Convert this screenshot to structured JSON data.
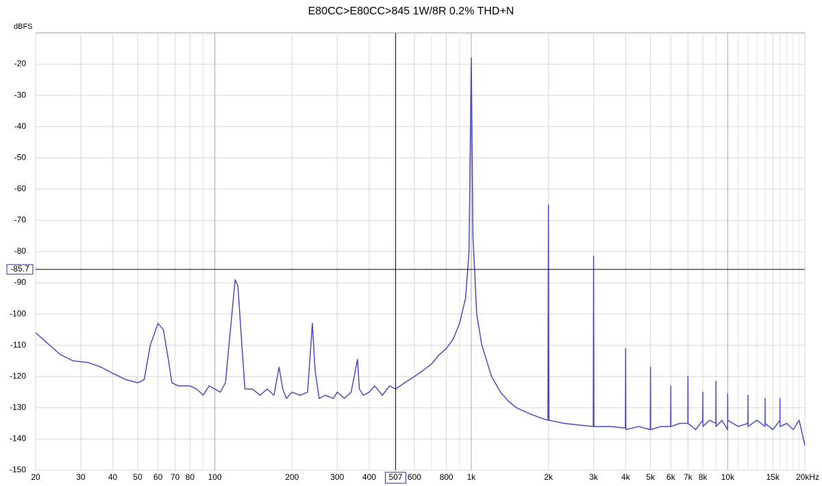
{
  "chart_data": {
    "type": "line",
    "title": "E80CC>E80CC>845 1W/8R 0.2% THD+N",
    "y_label": "dBFS",
    "color": "#4a4bc4",
    "xscale": "log",
    "grid": true,
    "xlim": [
      20,
      20000
    ],
    "ylim": [
      -150,
      -10
    ],
    "yticks": [
      -150,
      -140,
      -130,
      -120,
      -110,
      -100,
      -90,
      -80,
      -70,
      -60,
      -50,
      -40,
      -30,
      -20
    ],
    "xticks": [
      20,
      30,
      40,
      50,
      60,
      70,
      80,
      100,
      200,
      300,
      400,
      600,
      800,
      {
        "value": 1000,
        "label": "1k"
      },
      {
        "value": 2000,
        "label": "2k"
      },
      {
        "value": 3000,
        "label": "3k"
      },
      {
        "value": 4000,
        "label": "4k"
      },
      {
        "value": 5000,
        "label": "5k"
      },
      {
        "value": 6000,
        "label": "6k"
      },
      {
        "value": 7000,
        "label": "7k"
      },
      {
        "value": 8000,
        "label": "8k"
      },
      {
        "value": 10000,
        "label": "10k"
      },
      {
        "value": 15000,
        "label": "15k"
      },
      {
        "value": 20000,
        "label": "20kHz"
      }
    ],
    "xgrid_minor": [
      90,
      500,
      700,
      900,
      9000,
      11000,
      12000,
      13000,
      14000,
      16000,
      17000,
      18000,
      19000
    ],
    "cursor": {
      "x": 507,
      "y": -85.7
    },
    "x": [
      20,
      22,
      25,
      28,
      32,
      36,
      40,
      45,
      50,
      53,
      56,
      60,
      63,
      66,
      68,
      72,
      80,
      85,
      90,
      95,
      100,
      105,
      110,
      115,
      120,
      123,
      127,
      131,
      140,
      150,
      160,
      170,
      178,
      184,
      190,
      200,
      215,
      230,
      240,
      246,
      255,
      270,
      290,
      300,
      320,
      340,
      360,
      366,
      380,
      400,
      420,
      450,
      480,
      507,
      550,
      600,
      650,
      700,
      750,
      800,
      850,
      900,
      950,
      980,
      1000,
      1015,
      1050,
      1100,
      1200,
      1300,
      1400,
      1500,
      1700,
      1900,
      1990,
      2000,
      2010,
      2300,
      2600,
      2990,
      3000,
      3010,
      3500,
      3990,
      4000,
      4010,
      4500,
      4990,
      5000,
      5010,
      5500,
      5990,
      6000,
      6010,
      6500,
      6990,
      7000,
      7010,
      7500,
      7990,
      8000,
      8010,
      8500,
      8990,
      9000,
      9010,
      9500,
      9990,
      10000,
      10010,
      11000,
      11990,
      12000,
      12010,
      13000,
      13990,
      14000,
      14010,
      15000,
      15990,
      16000,
      16010,
      17000,
      18000,
      19000,
      20000
    ],
    "values": [
      -106,
      -109,
      -113,
      -115,
      -115.5,
      -117,
      -119,
      -121,
      -122,
      -121,
      -110,
      -103,
      -105,
      -115,
      -122,
      -123,
      -123,
      -124,
      -126,
      -123,
      -124,
      -125,
      -122,
      -105,
      -89,
      -91,
      -108,
      -124,
      -124,
      -126,
      -124,
      -126,
      -117,
      -124,
      -127,
      -125,
      -126,
      -125,
      -103,
      -118,
      -127,
      -126,
      -127,
      -125,
      -127,
      -125,
      -114.5,
      -124,
      -126,
      -125,
      -123,
      -126,
      -123,
      -124,
      -122,
      -120,
      -118,
      -116,
      -113,
      -111,
      -108,
      -103,
      -95,
      -80,
      -18,
      -75,
      -100,
      -110,
      -120,
      -125,
      -128,
      -130,
      -132,
      -133.5,
      -134,
      -65,
      -134,
      -135,
      -135.5,
      -136,
      -81.5,
      -136,
      -136,
      -136.5,
      -111,
      -137,
      -136,
      -137,
      -117,
      -137,
      -136,
      -136,
      -123,
      -136,
      -135,
      -135,
      -120,
      -135,
      -137,
      -134,
      -125,
      -136,
      -134,
      -135,
      -121.5,
      -136,
      -134,
      -137,
      -125.5,
      -134,
      -136,
      -135,
      -126,
      -136,
      -134,
      -136,
      -127,
      -135,
      -137,
      -134,
      -127,
      -136,
      -135,
      -137,
      -134,
      -142
    ]
  }
}
